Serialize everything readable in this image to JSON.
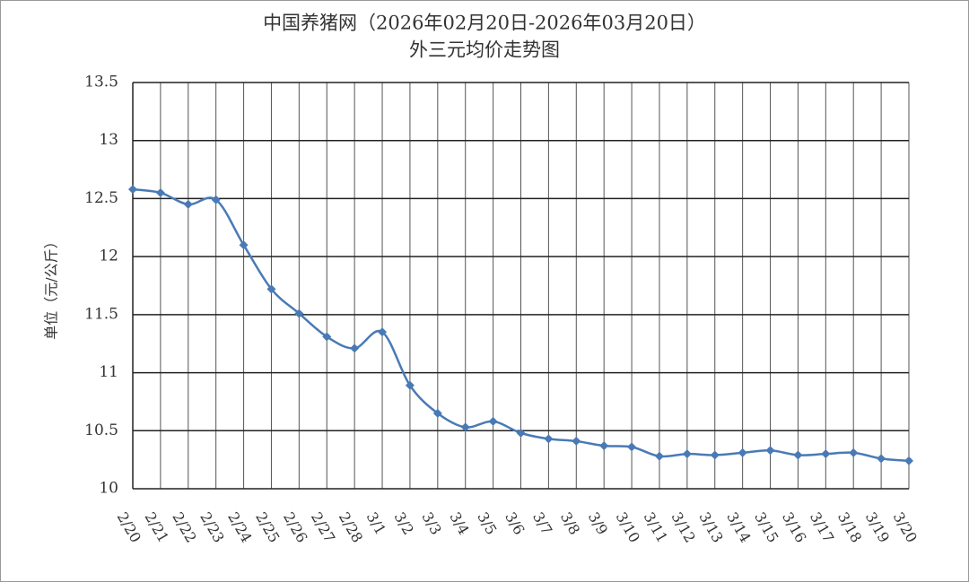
{
  "chart_data": {
    "type": "line",
    "title": "中国养猪网（2026年02月20日-2026年03月20日）",
    "subtitle": "外三元均价走势图",
    "y_label": "单位（元/公斤）",
    "categories": [
      "2/20",
      "2/21",
      "2/22",
      "2/23",
      "2/24",
      "2/25",
      "2/26",
      "2/27",
      "2/28",
      "3/1",
      "3/2",
      "3/3",
      "3/4",
      "3/5",
      "3/6",
      "3/7",
      "3/8",
      "3/9",
      "3/10",
      "3/11",
      "3/12",
      "3/13",
      "3/14",
      "3/15",
      "3/16",
      "3/17",
      "3/18",
      "3/19",
      "3/20"
    ],
    "series": [
      {
        "name": "外三元",
        "color": "#4a7ab5",
        "values": [
          12.58,
          12.55,
          12.45,
          12.49,
          12.1,
          11.72,
          11.51,
          11.31,
          11.21,
          11.35,
          10.89,
          10.65,
          10.53,
          10.58,
          10.48,
          10.43,
          10.41,
          10.37,
          10.36,
          10.28,
          10.3,
          10.29,
          10.31,
          10.33,
          10.29,
          10.3,
          10.31,
          10.26,
          10.24
        ]
      }
    ],
    "ylim": [
      10,
      13.5
    ],
    "yticks": [
      10,
      10.5,
      11,
      11.5,
      12,
      12.5,
      13,
      13.5
    ],
    "grid": true
  }
}
